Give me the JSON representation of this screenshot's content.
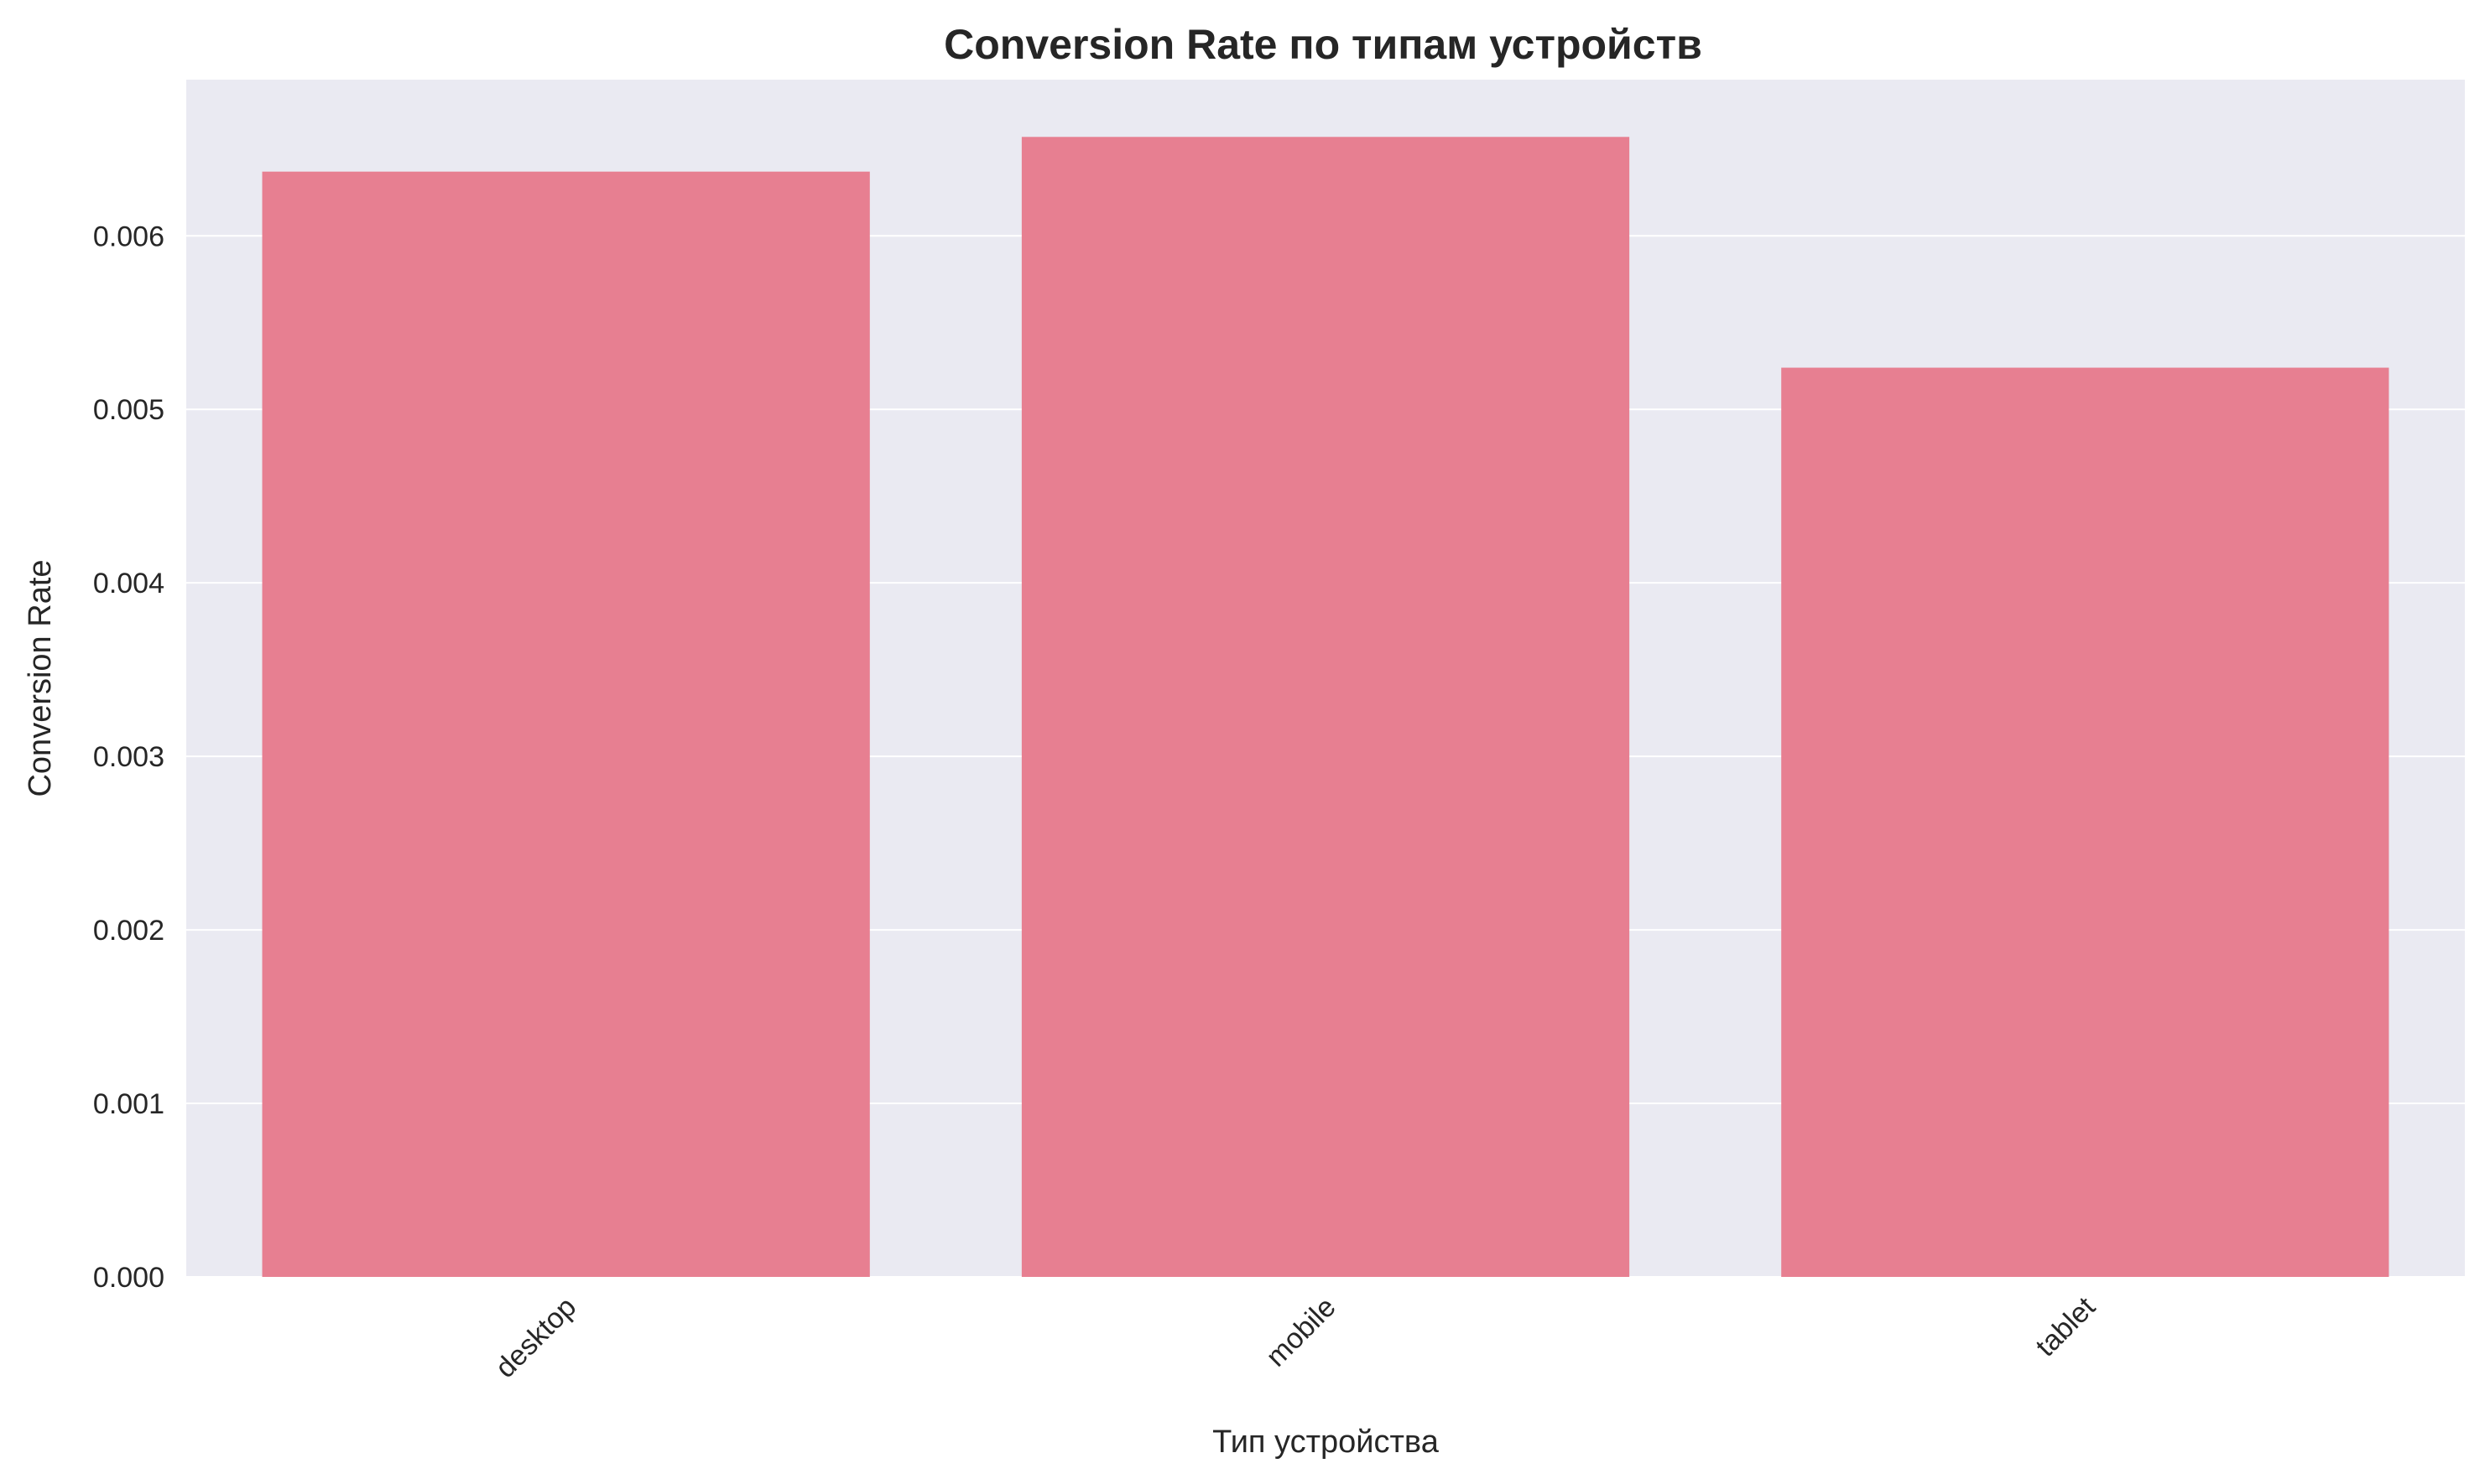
{
  "chart_data": {
    "type": "bar",
    "title": "Conversion Rate по типам устройств",
    "xlabel": "Тип устройства",
    "ylabel": "Conversion Rate",
    "categories": [
      "desktop",
      "mobile",
      "tablet"
    ],
    "values": [
      0.00637,
      0.00657,
      0.00524
    ],
    "ylim": [
      0,
      0.0069
    ],
    "yticks": [
      "0.000",
      "0.001",
      "0.002",
      "0.003",
      "0.004",
      "0.005",
      "0.006"
    ],
    "grid": true,
    "colors": {
      "bar": "#e77f91",
      "plot_bg": "#eaeaf2",
      "grid": "#ffffff"
    }
  }
}
